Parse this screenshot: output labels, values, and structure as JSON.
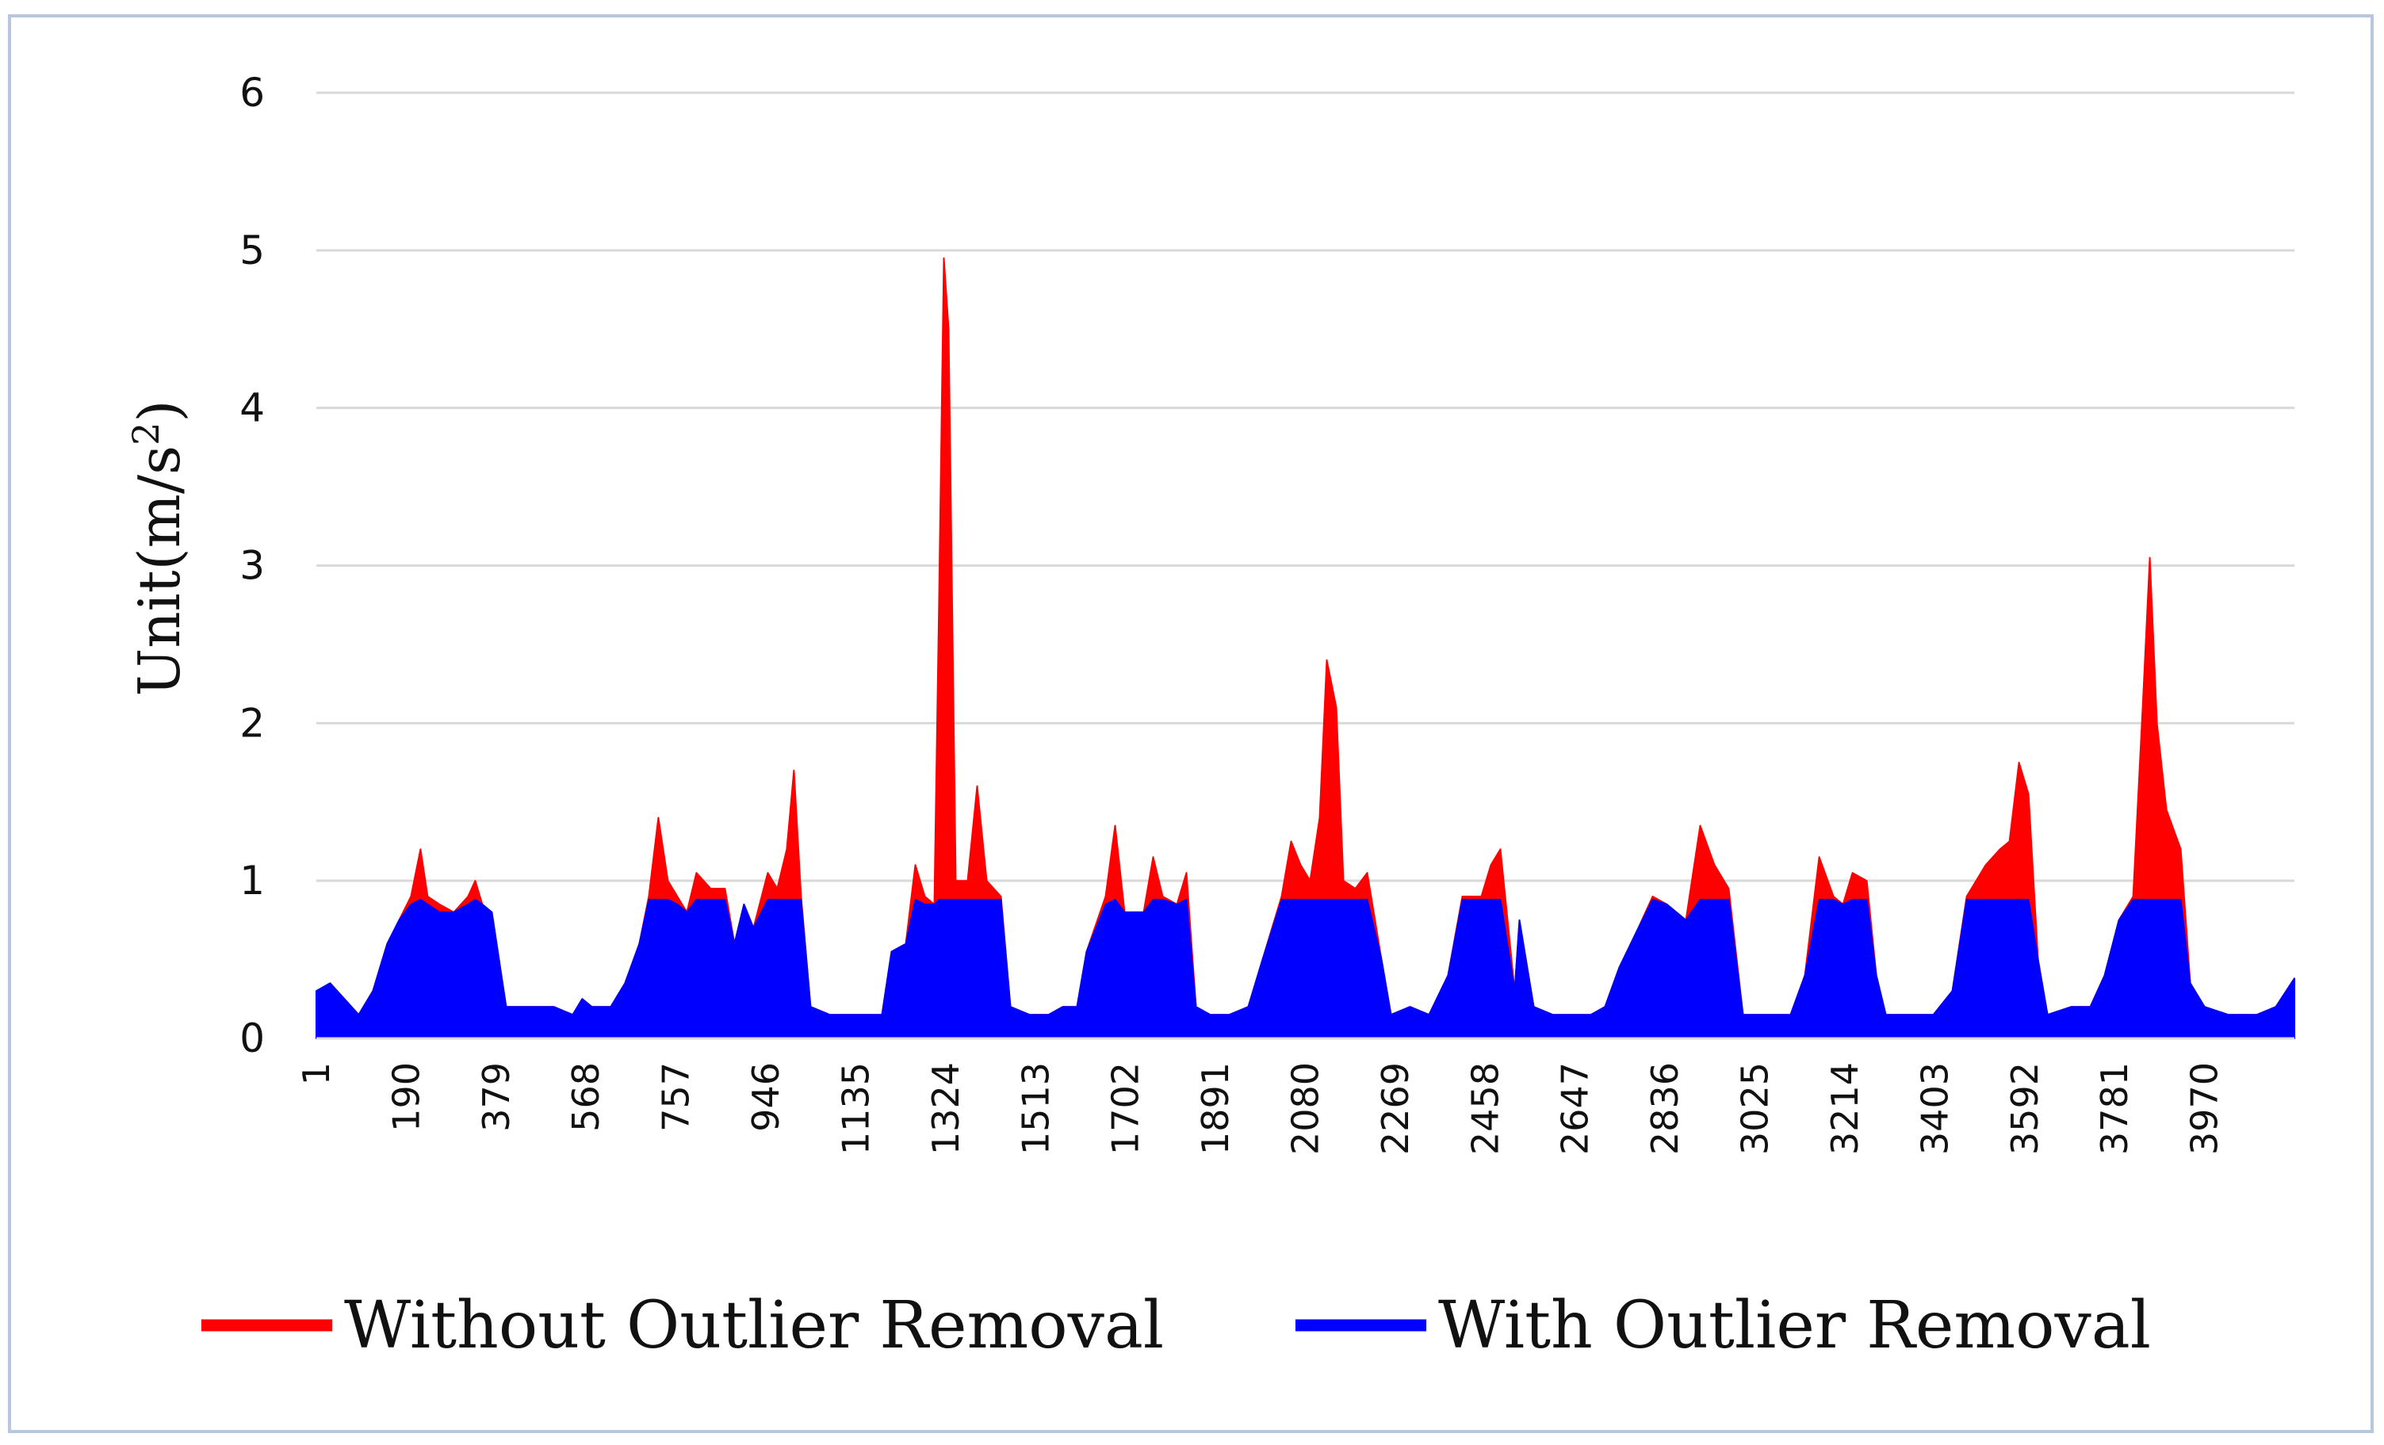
{
  "chart_data": {
    "type": "area",
    "ylabel": "Unit(m/s",
    "ylabel_sup": "2",
    "ylabel_suffix": ")",
    "ylim": [
      0,
      6
    ],
    "yticks": [
      0,
      1,
      2,
      3,
      4,
      5,
      6
    ],
    "xlim": [
      1,
      4159
    ],
    "xticks": [
      1,
      190,
      379,
      568,
      757,
      946,
      1135,
      1324,
      1513,
      1702,
      1891,
      2080,
      2269,
      2458,
      2647,
      2836,
      3025,
      3214,
      3403,
      3592,
      3781,
      3970
    ],
    "grid": true,
    "legend_position": "bottom",
    "colors": {
      "without": "#ff0000",
      "with": "#0000ff",
      "grid": "#d9d9d9",
      "frame": "#b8c7de"
    },
    "series": [
      {
        "name": "Without Outlier Removal",
        "color": "#ff0000",
        "points": [
          [
            1,
            0.3
          ],
          [
            30,
            0.35
          ],
          [
            60,
            0.25
          ],
          [
            90,
            0.15
          ],
          [
            120,
            0.3
          ],
          [
            150,
            0.6
          ],
          [
            175,
            0.75
          ],
          [
            200,
            0.9
          ],
          [
            220,
            1.2
          ],
          [
            235,
            0.9
          ],
          [
            260,
            0.85
          ],
          [
            290,
            0.8
          ],
          [
            320,
            0.9
          ],
          [
            335,
            1.0
          ],
          [
            350,
            0.85
          ],
          [
            370,
            0.8
          ],
          [
            390,
            0.4
          ],
          [
            400,
            0.2
          ],
          [
            450,
            0.2
          ],
          [
            500,
            0.2
          ],
          [
            540,
            0.15
          ],
          [
            560,
            0.25
          ],
          [
            580,
            0.2
          ],
          [
            620,
            0.2
          ],
          [
            650,
            0.35
          ],
          [
            680,
            0.6
          ],
          [
            700,
            0.9
          ],
          [
            720,
            1.4
          ],
          [
            740,
            1.0
          ],
          [
            760,
            0.9
          ],
          [
            780,
            0.8
          ],
          [
            800,
            1.05
          ],
          [
            830,
            0.95
          ],
          [
            860,
            0.95
          ],
          [
            880,
            0.6
          ],
          [
            900,
            0.85
          ],
          [
            920,
            0.7
          ],
          [
            950,
            1.05
          ],
          [
            970,
            0.95
          ],
          [
            990,
            1.2
          ],
          [
            1005,
            1.7
          ],
          [
            1020,
            0.9
          ],
          [
            1040,
            0.2
          ],
          [
            1080,
            0.15
          ],
          [
            1120,
            0.15
          ],
          [
            1160,
            0.15
          ],
          [
            1190,
            0.15
          ],
          [
            1210,
            0.55
          ],
          [
            1240,
            0.6
          ],
          [
            1260,
            1.1
          ],
          [
            1280,
            0.9
          ],
          [
            1300,
            0.85
          ],
          [
            1310,
            2.8
          ],
          [
            1320,
            4.95
          ],
          [
            1330,
            4.5
          ],
          [
            1345,
            1.0
          ],
          [
            1370,
            1.0
          ],
          [
            1390,
            1.6
          ],
          [
            1410,
            1.0
          ],
          [
            1440,
            0.9
          ],
          [
            1460,
            0.2
          ],
          [
            1500,
            0.15
          ],
          [
            1540,
            0.15
          ],
          [
            1570,
            0.2
          ],
          [
            1600,
            0.2
          ],
          [
            1620,
            0.55
          ],
          [
            1660,
            0.9
          ],
          [
            1680,
            1.35
          ],
          [
            1700,
            0.8
          ],
          [
            1720,
            0.8
          ],
          [
            1740,
            0.8
          ],
          [
            1760,
            1.15
          ],
          [
            1780,
            0.9
          ],
          [
            1810,
            0.85
          ],
          [
            1830,
            1.05
          ],
          [
            1850,
            0.2
          ],
          [
            1880,
            0.15
          ],
          [
            1920,
            0.15
          ],
          [
            1960,
            0.2
          ],
          [
            1990,
            0.5
          ],
          [
            2030,
            0.9
          ],
          [
            2050,
            1.25
          ],
          [
            2070,
            1.1
          ],
          [
            2090,
            1.0
          ],
          [
            2110,
            1.4
          ],
          [
            2125,
            2.4
          ],
          [
            2145,
            2.1
          ],
          [
            2160,
            1.0
          ],
          [
            2185,
            0.95
          ],
          [
            2210,
            1.05
          ],
          [
            2240,
            0.5
          ],
          [
            2260,
            0.15
          ],
          [
            2300,
            0.2
          ],
          [
            2340,
            0.15
          ],
          [
            2380,
            0.4
          ],
          [
            2410,
            0.9
          ],
          [
            2450,
            0.9
          ],
          [
            2470,
            1.1
          ],
          [
            2490,
            1.2
          ],
          [
            2520,
            0.3
          ],
          [
            2530,
            0.75
          ],
          [
            2560,
            0.2
          ],
          [
            2600,
            0.15
          ],
          [
            2640,
            0.15
          ],
          [
            2680,
            0.15
          ],
          [
            2710,
            0.2
          ],
          [
            2740,
            0.45
          ],
          [
            2780,
            0.7
          ],
          [
            2810,
            0.9
          ],
          [
            2840,
            0.85
          ],
          [
            2880,
            0.75
          ],
          [
            2910,
            1.35
          ],
          [
            2940,
            1.1
          ],
          [
            2970,
            0.95
          ],
          [
            3000,
            0.15
          ],
          [
            3050,
            0.15
          ],
          [
            3100,
            0.15
          ],
          [
            3130,
            0.4
          ],
          [
            3160,
            1.15
          ],
          [
            3190,
            0.9
          ],
          [
            3210,
            0.85
          ],
          [
            3230,
            1.05
          ],
          [
            3260,
            1.0
          ],
          [
            3280,
            0.4
          ],
          [
            3300,
            0.15
          ],
          [
            3350,
            0.15
          ],
          [
            3400,
            0.15
          ],
          [
            3440,
            0.3
          ],
          [
            3470,
            0.9
          ],
          [
            3490,
            1.0
          ],
          [
            3510,
            1.1
          ],
          [
            3540,
            1.2
          ],
          [
            3560,
            1.25
          ],
          [
            3580,
            1.75
          ],
          [
            3600,
            1.55
          ],
          [
            3620,
            0.5
          ],
          [
            3640,
            0.15
          ],
          [
            3690,
            0.2
          ],
          [
            3730,
            0.2
          ],
          [
            3760,
            0.4
          ],
          [
            3790,
            0.75
          ],
          [
            3820,
            0.9
          ],
          [
            3840,
            2.1
          ],
          [
            3855,
            3.05
          ],
          [
            3870,
            2.0
          ],
          [
            3890,
            1.45
          ],
          [
            3920,
            1.2
          ],
          [
            3940,
            0.35
          ],
          [
            3970,
            0.2
          ],
          [
            4020,
            0.15
          ],
          [
            4080,
            0.15
          ],
          [
            4120,
            0.2
          ],
          [
            4159,
            0.38
          ]
        ]
      },
      {
        "name": "With Outlier Removal",
        "color": "#0000ff",
        "points": [
          [
            1,
            0.3
          ],
          [
            30,
            0.35
          ],
          [
            60,
            0.25
          ],
          [
            90,
            0.15
          ],
          [
            120,
            0.3
          ],
          [
            150,
            0.6
          ],
          [
            175,
            0.75
          ],
          [
            200,
            0.85
          ],
          [
            220,
            0.88
          ],
          [
            235,
            0.85
          ],
          [
            260,
            0.8
          ],
          [
            290,
            0.8
          ],
          [
            320,
            0.85
          ],
          [
            335,
            0.88
          ],
          [
            350,
            0.85
          ],
          [
            370,
            0.8
          ],
          [
            390,
            0.4
          ],
          [
            400,
            0.2
          ],
          [
            450,
            0.2
          ],
          [
            500,
            0.2
          ],
          [
            540,
            0.15
          ],
          [
            560,
            0.25
          ],
          [
            580,
            0.2
          ],
          [
            620,
            0.2
          ],
          [
            650,
            0.35
          ],
          [
            680,
            0.6
          ],
          [
            700,
            0.88
          ],
          [
            720,
            0.88
          ],
          [
            740,
            0.88
          ],
          [
            760,
            0.85
          ],
          [
            780,
            0.8
          ],
          [
            800,
            0.88
          ],
          [
            830,
            0.88
          ],
          [
            860,
            0.88
          ],
          [
            880,
            0.6
          ],
          [
            900,
            0.85
          ],
          [
            920,
            0.7
          ],
          [
            950,
            0.88
          ],
          [
            970,
            0.88
          ],
          [
            990,
            0.88
          ],
          [
            1005,
            0.88
          ],
          [
            1020,
            0.88
          ],
          [
            1040,
            0.2
          ],
          [
            1080,
            0.15
          ],
          [
            1120,
            0.15
          ],
          [
            1160,
            0.15
          ],
          [
            1190,
            0.15
          ],
          [
            1210,
            0.55
          ],
          [
            1240,
            0.6
          ],
          [
            1260,
            0.88
          ],
          [
            1280,
            0.85
          ],
          [
            1300,
            0.85
          ],
          [
            1310,
            0.88
          ],
          [
            1320,
            0.88
          ],
          [
            1330,
            0.88
          ],
          [
            1345,
            0.88
          ],
          [
            1370,
            0.88
          ],
          [
            1390,
            0.88
          ],
          [
            1410,
            0.88
          ],
          [
            1440,
            0.88
          ],
          [
            1460,
            0.2
          ],
          [
            1500,
            0.15
          ],
          [
            1540,
            0.15
          ],
          [
            1570,
            0.2
          ],
          [
            1600,
            0.2
          ],
          [
            1620,
            0.55
          ],
          [
            1660,
            0.85
          ],
          [
            1680,
            0.88
          ],
          [
            1700,
            0.8
          ],
          [
            1720,
            0.8
          ],
          [
            1740,
            0.8
          ],
          [
            1760,
            0.88
          ],
          [
            1780,
            0.88
          ],
          [
            1810,
            0.85
          ],
          [
            1830,
            0.88
          ],
          [
            1850,
            0.2
          ],
          [
            1880,
            0.15
          ],
          [
            1920,
            0.15
          ],
          [
            1960,
            0.2
          ],
          [
            1990,
            0.5
          ],
          [
            2030,
            0.88
          ],
          [
            2050,
            0.88
          ],
          [
            2070,
            0.88
          ],
          [
            2090,
            0.88
          ],
          [
            2110,
            0.88
          ],
          [
            2125,
            0.88
          ],
          [
            2145,
            0.88
          ],
          [
            2160,
            0.88
          ],
          [
            2185,
            0.88
          ],
          [
            2210,
            0.88
          ],
          [
            2240,
            0.5
          ],
          [
            2260,
            0.15
          ],
          [
            2300,
            0.2
          ],
          [
            2340,
            0.15
          ],
          [
            2380,
            0.4
          ],
          [
            2410,
            0.88
          ],
          [
            2450,
            0.88
          ],
          [
            2470,
            0.88
          ],
          [
            2490,
            0.88
          ],
          [
            2520,
            0.3
          ],
          [
            2530,
            0.75
          ],
          [
            2560,
            0.2
          ],
          [
            2600,
            0.15
          ],
          [
            2640,
            0.15
          ],
          [
            2680,
            0.15
          ],
          [
            2710,
            0.2
          ],
          [
            2740,
            0.45
          ],
          [
            2780,
            0.7
          ],
          [
            2810,
            0.88
          ],
          [
            2840,
            0.85
          ],
          [
            2880,
            0.75
          ],
          [
            2910,
            0.88
          ],
          [
            2940,
            0.88
          ],
          [
            2970,
            0.88
          ],
          [
            3000,
            0.15
          ],
          [
            3050,
            0.15
          ],
          [
            3100,
            0.15
          ],
          [
            3130,
            0.4
          ],
          [
            3160,
            0.88
          ],
          [
            3190,
            0.88
          ],
          [
            3210,
            0.85
          ],
          [
            3230,
            0.88
          ],
          [
            3260,
            0.88
          ],
          [
            3280,
            0.4
          ],
          [
            3300,
            0.15
          ],
          [
            3350,
            0.15
          ],
          [
            3400,
            0.15
          ],
          [
            3440,
            0.3
          ],
          [
            3470,
            0.88
          ],
          [
            3490,
            0.88
          ],
          [
            3510,
            0.88
          ],
          [
            3540,
            0.88
          ],
          [
            3560,
            0.88
          ],
          [
            3580,
            0.88
          ],
          [
            3600,
            0.88
          ],
          [
            3620,
            0.5
          ],
          [
            3640,
            0.15
          ],
          [
            3690,
            0.2
          ],
          [
            3730,
            0.2
          ],
          [
            3760,
            0.4
          ],
          [
            3790,
            0.75
          ],
          [
            3820,
            0.88
          ],
          [
            3840,
            0.88
          ],
          [
            3855,
            0.88
          ],
          [
            3870,
            0.88
          ],
          [
            3890,
            0.88
          ],
          [
            3920,
            0.88
          ],
          [
            3940,
            0.35
          ],
          [
            3970,
            0.2
          ],
          [
            4020,
            0.15
          ],
          [
            4080,
            0.15
          ],
          [
            4120,
            0.2
          ],
          [
            4159,
            0.38
          ]
        ]
      }
    ]
  }
}
